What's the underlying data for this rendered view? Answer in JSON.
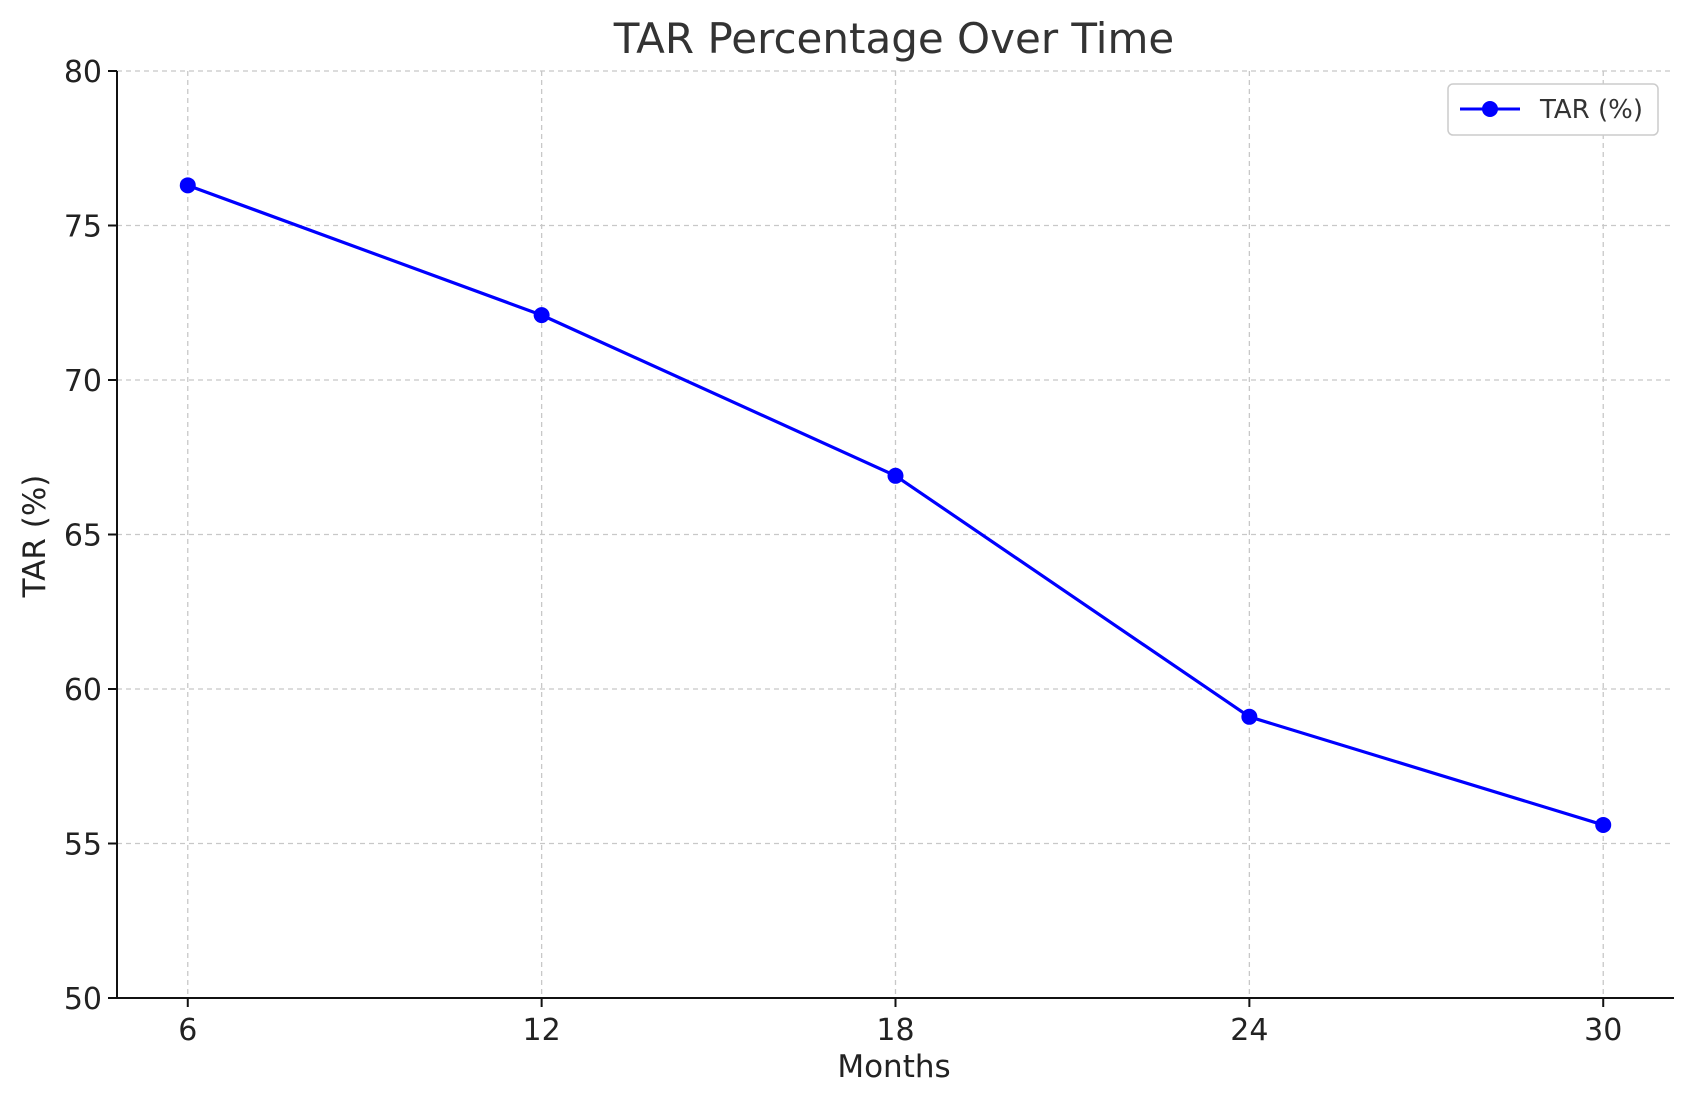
{
  "chart_data": {
    "type": "line",
    "title": "TAR Percentage Over Time",
    "xlabel": "Months",
    "ylabel": "TAR (%)",
    "x": [
      6,
      12,
      18,
      24,
      30
    ],
    "series": [
      {
        "name": "TAR (%)",
        "values": [
          76.3,
          72.1,
          66.9,
          59.1,
          55.6
        ],
        "color": "#0000ff",
        "marker": "circle"
      }
    ],
    "xticks": [
      "6",
      "12",
      "18",
      "24",
      "30"
    ],
    "yticks": [
      "50",
      "55",
      "60",
      "65",
      "70",
      "75",
      "80"
    ],
    "xlim": [
      4.8,
      31.2
    ],
    "ylim": [
      50,
      80
    ],
    "grid": true,
    "legend_position": "top-right"
  }
}
